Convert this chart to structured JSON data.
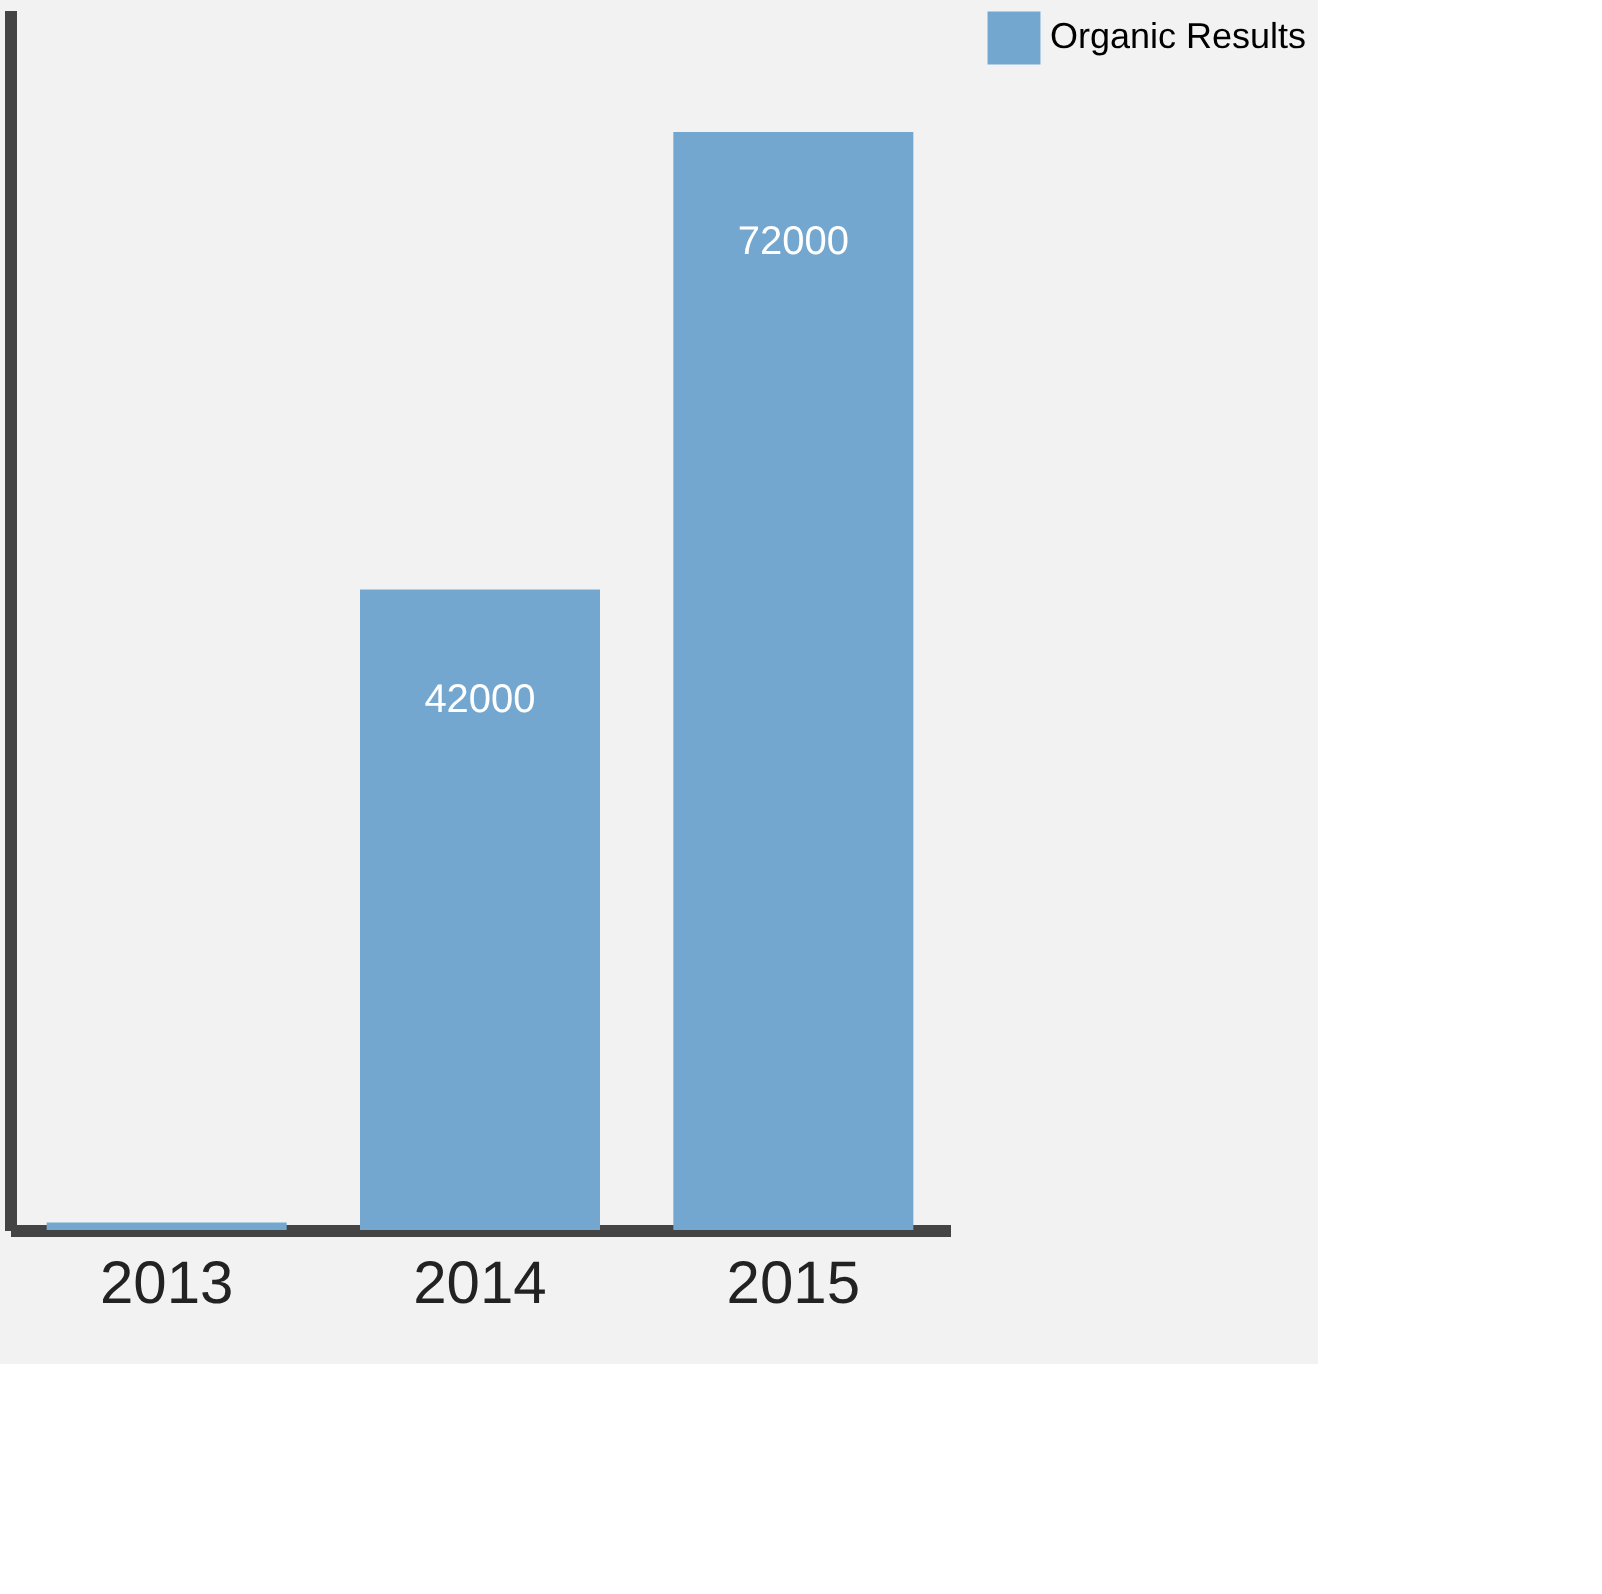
{
  "chart_data": {
    "type": "bar",
    "categories": [
      "2013",
      "2014",
      "2015"
    ],
    "series": [
      {
        "name": "Organic Results",
        "color": "#74a7cf",
        "values": [
          500,
          42000,
          72000
        ],
        "value_labels": [
          null,
          "42000",
          "72000"
        ]
      }
    ],
    "legend": "top right",
    "grid": false,
    "tick_labels": "x"
  }
}
